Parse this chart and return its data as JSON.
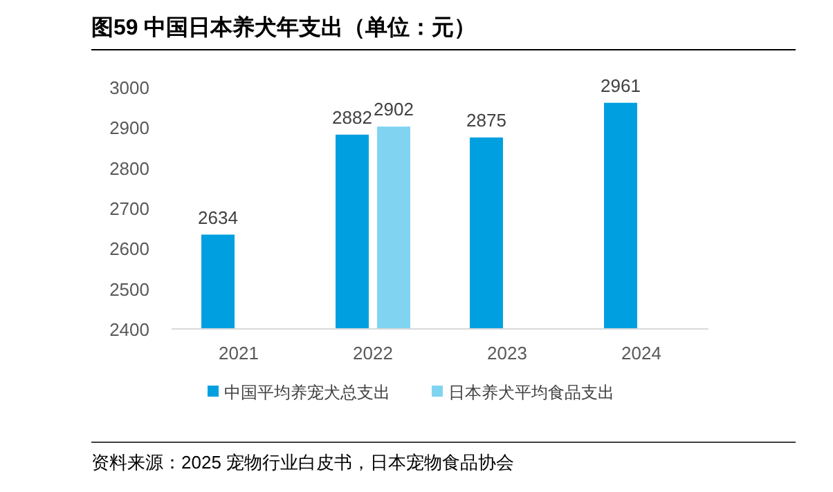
{
  "chart_data": {
    "type": "bar",
    "title": "图59 中国日本养犬年支出（单位：元）",
    "categories": [
      "2021",
      "2022",
      "2023",
      "2024"
    ],
    "series": [
      {
        "name": "中国平均养宠犬总支出",
        "color": "#00a0e0",
        "values": [
          2634,
          2882,
          2875,
          2961
        ]
      },
      {
        "name": "日本养犬平均食品支出",
        "color": "#80d4f2",
        "values": [
          null,
          2902,
          null,
          null
        ]
      }
    ],
    "ylim": [
      2400,
      3000
    ],
    "yticks": [
      2400,
      2500,
      2600,
      2700,
      2800,
      2900,
      3000
    ],
    "data_labels": true,
    "grid": false,
    "legend": "bottom",
    "annotations": [
      "资料来源：2025 宠物行业白皮书，日本宠物食品协会"
    ]
  }
}
